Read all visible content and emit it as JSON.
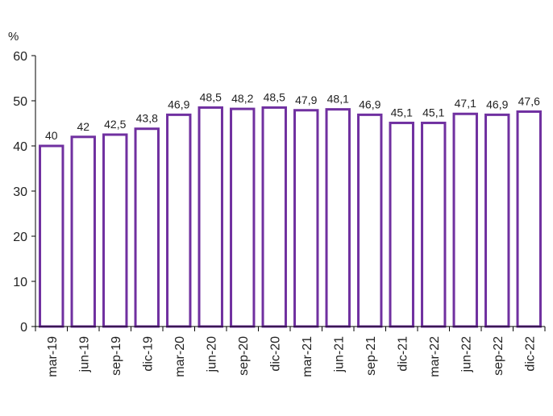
{
  "chart_data": {
    "type": "bar",
    "unit_label": "%",
    "categories": [
      "mar-19",
      "jun-19",
      "sep-19",
      "dic-19",
      "mar-20",
      "jun-20",
      "sep-20",
      "dic-20",
      "mar-21",
      "jun-21",
      "sep-21",
      "dic-21",
      "mar-22",
      "jun-22",
      "sep-22",
      "dic-22"
    ],
    "values": [
      40,
      42,
      42.5,
      43.8,
      46.9,
      48.5,
      48.2,
      48.5,
      47.9,
      48.1,
      46.9,
      45.1,
      45.1,
      47.1,
      46.9,
      47.6
    ],
    "value_labels": [
      "40",
      "42",
      "42,5",
      "43,8",
      "46,9",
      "48,5",
      "48,2",
      "48,5",
      "47,9",
      "48,1",
      "46,9",
      "45,1",
      "45,1",
      "47,1",
      "46,9",
      "47,6"
    ],
    "yticks": [
      0,
      10,
      20,
      30,
      40,
      50,
      60
    ],
    "ylim": [
      0,
      60
    ],
    "title": "",
    "xlabel": "",
    "ylabel": "",
    "grid": false,
    "legend": "none",
    "colors": {
      "bar_fill": "#ffffff",
      "bar_stroke": "#7030a0",
      "axis": "#000000",
      "text": "#222222"
    }
  }
}
